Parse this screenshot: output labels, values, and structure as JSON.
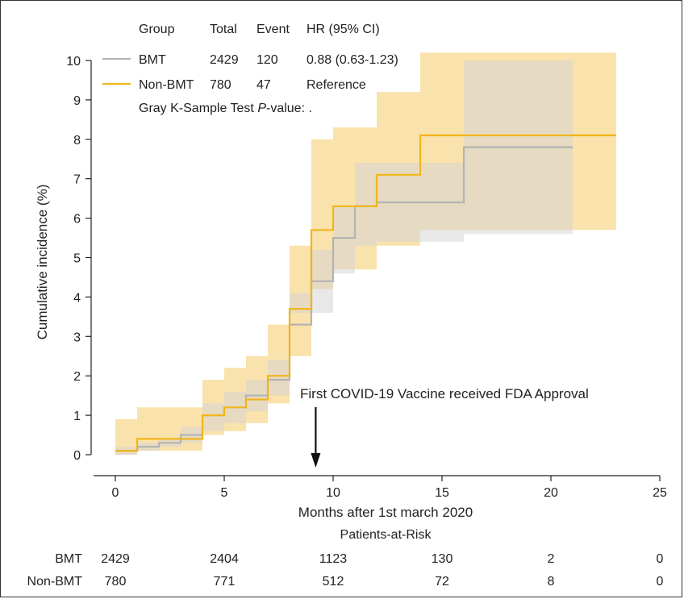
{
  "chart_data": {
    "type": "line",
    "subtype": "cumulative-incidence-step",
    "xlabel": "Months after 1st march 2020",
    "ylabel": "Cumulative incidence (%)",
    "xlim": [
      -1,
      25
    ],
    "ylim": [
      0,
      10
    ],
    "xticks": [
      0,
      5,
      10,
      15,
      20,
      25
    ],
    "yticks": [
      0,
      1,
      2,
      3,
      4,
      5,
      6,
      7,
      8,
      9,
      10
    ],
    "grid": false,
    "legend_position": "top-left",
    "legend": {
      "headers": [
        "Group",
        "Total",
        "Event",
        "HR (95% CI)"
      ],
      "rows": [
        {
          "group": "BMT",
          "total": "2429",
          "event": "120",
          "hr": "0.88 (0.63-1.23)"
        },
        {
          "group": "Non-BMT",
          "total": "780",
          "event": "47",
          "hr": "Reference"
        }
      ],
      "gray_test_prefix": "Gray K-Sample Test ",
      "gray_test_p": "P",
      "gray_test_suffix": "-value: ."
    },
    "series": [
      {
        "name": "BMT",
        "color": "#b3b3b3",
        "band_color": "#d6d6d6",
        "steps": [
          [
            0,
            0.1
          ],
          [
            1,
            0.2
          ],
          [
            2,
            0.3
          ],
          [
            3,
            0.5
          ],
          [
            4,
            1.0
          ],
          [
            5,
            1.2
          ],
          [
            6,
            1.5
          ],
          [
            7,
            1.9
          ],
          [
            8,
            3.3
          ],
          [
            9,
            4.4
          ],
          [
            10,
            5.5
          ],
          [
            11,
            6.3
          ],
          [
            12,
            6.4
          ],
          [
            14,
            6.4
          ],
          [
            16,
            7.8
          ],
          [
            21,
            7.8
          ]
        ],
        "lower": [
          [
            0,
            0.0
          ],
          [
            1,
            0.1
          ],
          [
            2,
            0.2
          ],
          [
            3,
            0.3
          ],
          [
            4,
            0.6
          ],
          [
            5,
            0.8
          ],
          [
            6,
            1.1
          ],
          [
            7,
            1.5
          ],
          [
            8,
            3.6
          ],
          [
            9,
            3.6
          ],
          [
            10,
            4.6
          ],
          [
            11,
            5.3
          ],
          [
            12,
            5.4
          ],
          [
            14,
            5.4
          ],
          [
            16,
            5.6
          ],
          [
            21,
            5.6
          ]
        ],
        "upper": [
          [
            0,
            0.2
          ],
          [
            1,
            0.3
          ],
          [
            2,
            0.4
          ],
          [
            3,
            0.7
          ],
          [
            4,
            1.3
          ],
          [
            5,
            1.6
          ],
          [
            6,
            1.9
          ],
          [
            7,
            2.4
          ],
          [
            8,
            4.1
          ],
          [
            9,
            5.2
          ],
          [
            10,
            6.3
          ],
          [
            11,
            7.4
          ],
          [
            12,
            7.4
          ],
          [
            14,
            7.4
          ],
          [
            16,
            10.0
          ],
          [
            21,
            10.0
          ]
        ]
      },
      {
        "name": "Non-BMT",
        "color": "#f1b51c",
        "band_color": "#f9dfa3",
        "steps": [
          [
            0,
            0.1
          ],
          [
            1,
            0.4
          ],
          [
            2,
            0.4
          ],
          [
            3,
            0.4
          ],
          [
            4,
            1.0
          ],
          [
            5,
            1.2
          ],
          [
            6,
            1.4
          ],
          [
            7,
            2.0
          ],
          [
            8,
            3.7
          ],
          [
            9,
            5.7
          ],
          [
            10,
            6.3
          ],
          [
            11,
            6.3
          ],
          [
            12,
            7.1
          ],
          [
            14,
            8.1
          ],
          [
            16,
            8.1
          ],
          [
            21,
            8.1
          ],
          [
            23,
            8.1
          ]
        ],
        "lower": [
          [
            0,
            0.0
          ],
          [
            1,
            0.1
          ],
          [
            2,
            0.1
          ],
          [
            3,
            0.1
          ],
          [
            4,
            0.5
          ],
          [
            5,
            0.6
          ],
          [
            6,
            0.8
          ],
          [
            7,
            1.3
          ],
          [
            8,
            2.5
          ],
          [
            9,
            4.2
          ],
          [
            10,
            4.7
          ],
          [
            11,
            4.7
          ],
          [
            12,
            5.3
          ],
          [
            14,
            5.7
          ],
          [
            16,
            5.7
          ],
          [
            21,
            5.7
          ],
          [
            23,
            5.7
          ]
        ],
        "upper": [
          [
            0,
            0.9
          ],
          [
            1,
            1.2
          ],
          [
            2,
            1.2
          ],
          [
            3,
            1.2
          ],
          [
            4,
            1.9
          ],
          [
            5,
            2.2
          ],
          [
            6,
            2.5
          ],
          [
            7,
            3.3
          ],
          [
            8,
            5.3
          ],
          [
            9,
            8.0
          ],
          [
            10,
            8.3
          ],
          [
            11,
            8.3
          ],
          [
            12,
            9.2
          ],
          [
            14,
            10.2
          ],
          [
            16,
            10.2
          ],
          [
            21,
            10.2
          ],
          [
            23,
            10.2
          ]
        ]
      }
    ],
    "annotation": {
      "text": "First COVID-19 Vaccine received FDA Approval",
      "x": 9.2
    },
    "risk_table": {
      "title": "Patients-at-Risk",
      "times": [
        0,
        5,
        10,
        15,
        20,
        25
      ],
      "rows": [
        {
          "label": "BMT",
          "values": [
            "2429",
            "2404",
            "1123",
            "130",
            "2",
            "0"
          ]
        },
        {
          "label": "Non-BMT",
          "values": [
            "780",
            "771",
            "512",
            "72",
            "8",
            "0"
          ]
        }
      ]
    }
  }
}
